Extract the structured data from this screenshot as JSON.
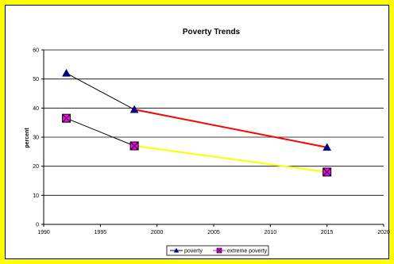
{
  "colors": {
    "background": "#ffff00",
    "panel": "#ffffff",
    "poverty_line_early": "#000000",
    "poverty_line_late": "#ff0000",
    "extreme_line_early": "#000000",
    "extreme_line_late": "#ffff00",
    "poverty_marker": "#000080",
    "extreme_marker_fill": "#ff00ff",
    "extreme_marker_stroke": "#000000",
    "grid": "#000000"
  },
  "chart_data": {
    "type": "line",
    "title": "Poverty Trends",
    "xlabel": "",
    "ylabel": "percent",
    "xlim": [
      1990,
      2020
    ],
    "ylim": [
      0,
      60
    ],
    "xticks": [
      "1990",
      "1995",
      "2000",
      "2005",
      "2010",
      "2015",
      "2020"
    ],
    "yticks": [
      "0",
      "10",
      "20",
      "30",
      "40",
      "50",
      "60"
    ],
    "grid": "horizontal",
    "legend": "bottom",
    "series": [
      {
        "name": "poverty",
        "marker": "triangle",
        "x": [
          1992,
          1998,
          2015
        ],
        "values": [
          52,
          39.5,
          26.5
        ],
        "segment_colors": [
          "#000000",
          "#ff0000"
        ]
      },
      {
        "name": "extreme poverty",
        "marker": "square-x",
        "x": [
          1992,
          1998,
          2015
        ],
        "values": [
          36.5,
          27,
          18
        ],
        "segment_colors": [
          "#000000",
          "#ffff00"
        ]
      }
    ]
  }
}
